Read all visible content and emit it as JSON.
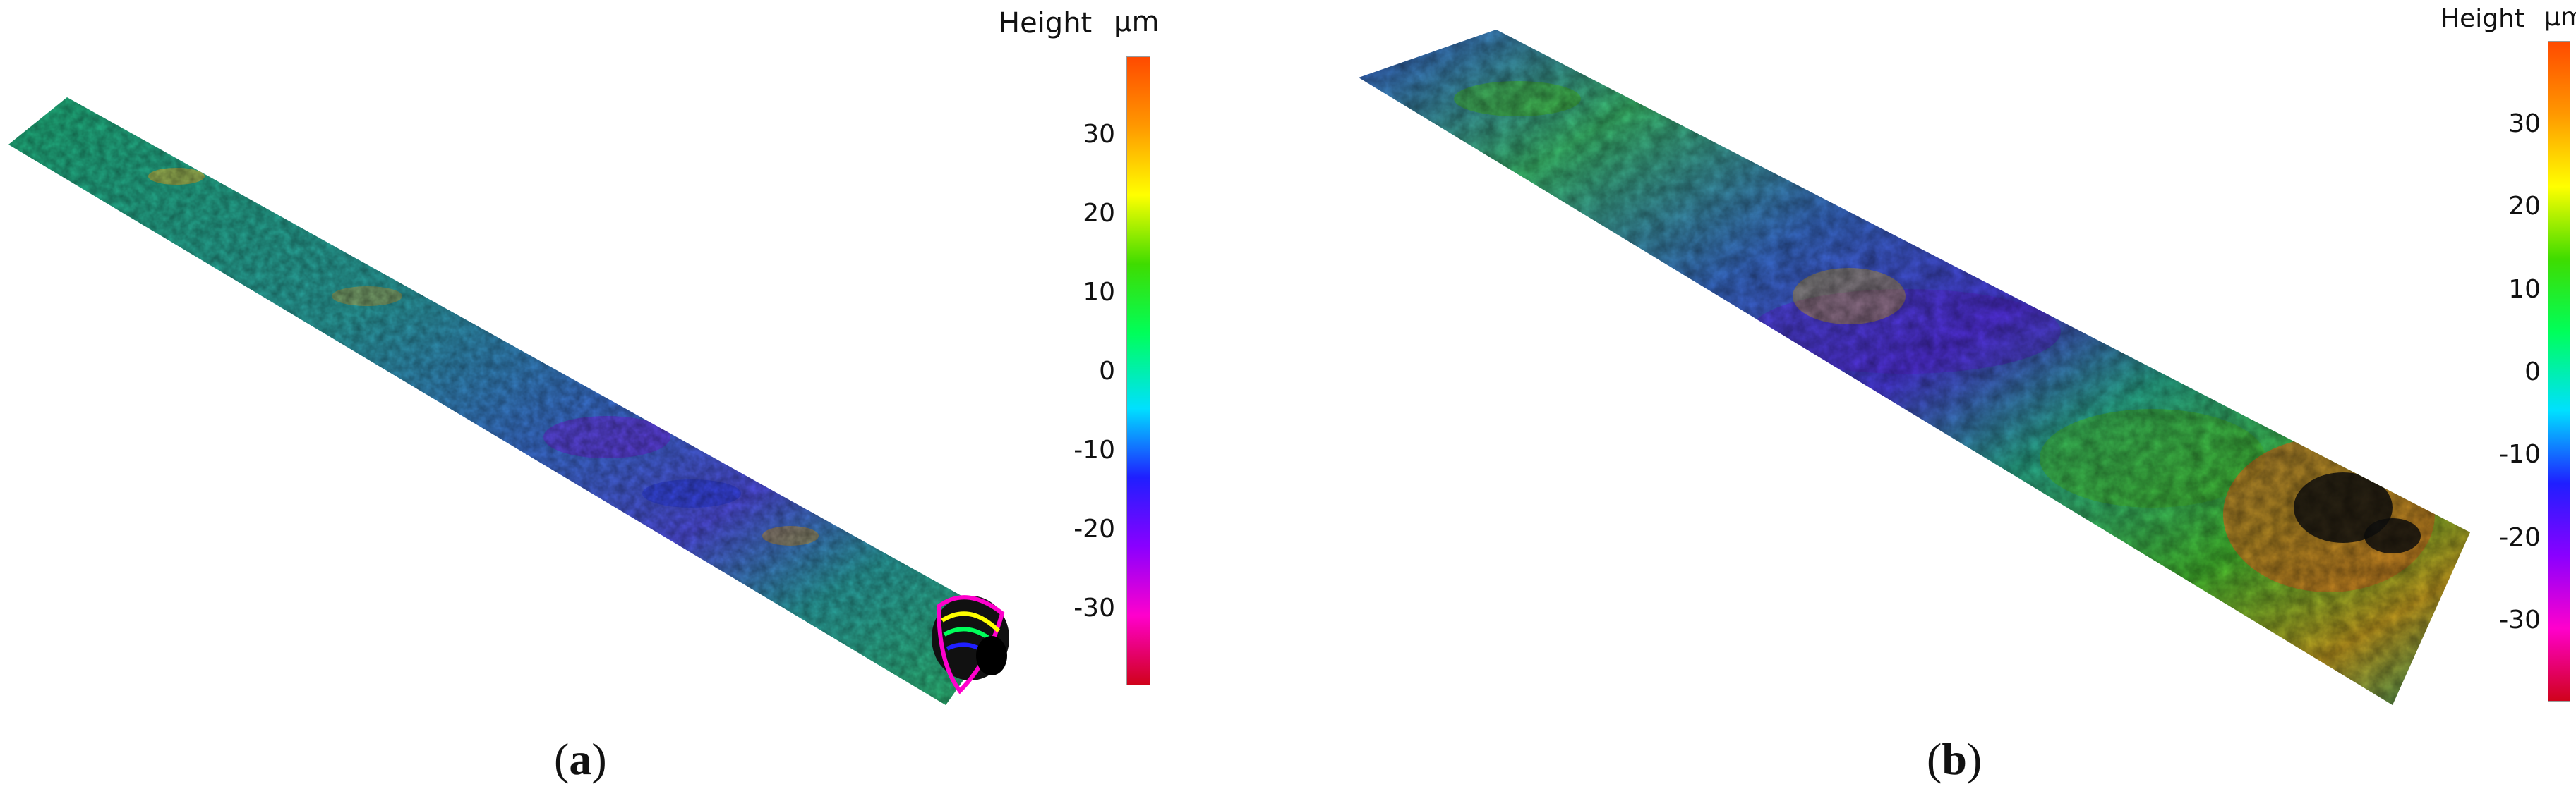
{
  "panels": [
    {
      "id": "a",
      "caption_open": "(",
      "caption_letter": "a",
      "caption_close": ")",
      "legend": {
        "title": "Height",
        "unit": "µm",
        "ticks": [
          "30",
          "20",
          "10",
          "0",
          "-10",
          "-20",
          "-30"
        ]
      }
    },
    {
      "id": "b",
      "caption_open": "(",
      "caption_letter": "b",
      "caption_close": ")",
      "legend": {
        "title": "Height",
        "unit": "µm",
        "ticks": [
          "30",
          "20",
          "10",
          "0",
          "-10",
          "-20",
          "-30"
        ]
      }
    }
  ],
  "colormap": [
    "#d0021b",
    "#ff00cc",
    "#8a00ff",
    "#1f1fff",
    "#00e0ff",
    "#00ff5a",
    "#3fdc00",
    "#ffff00",
    "#ff9800",
    "#ff4a00"
  ]
}
